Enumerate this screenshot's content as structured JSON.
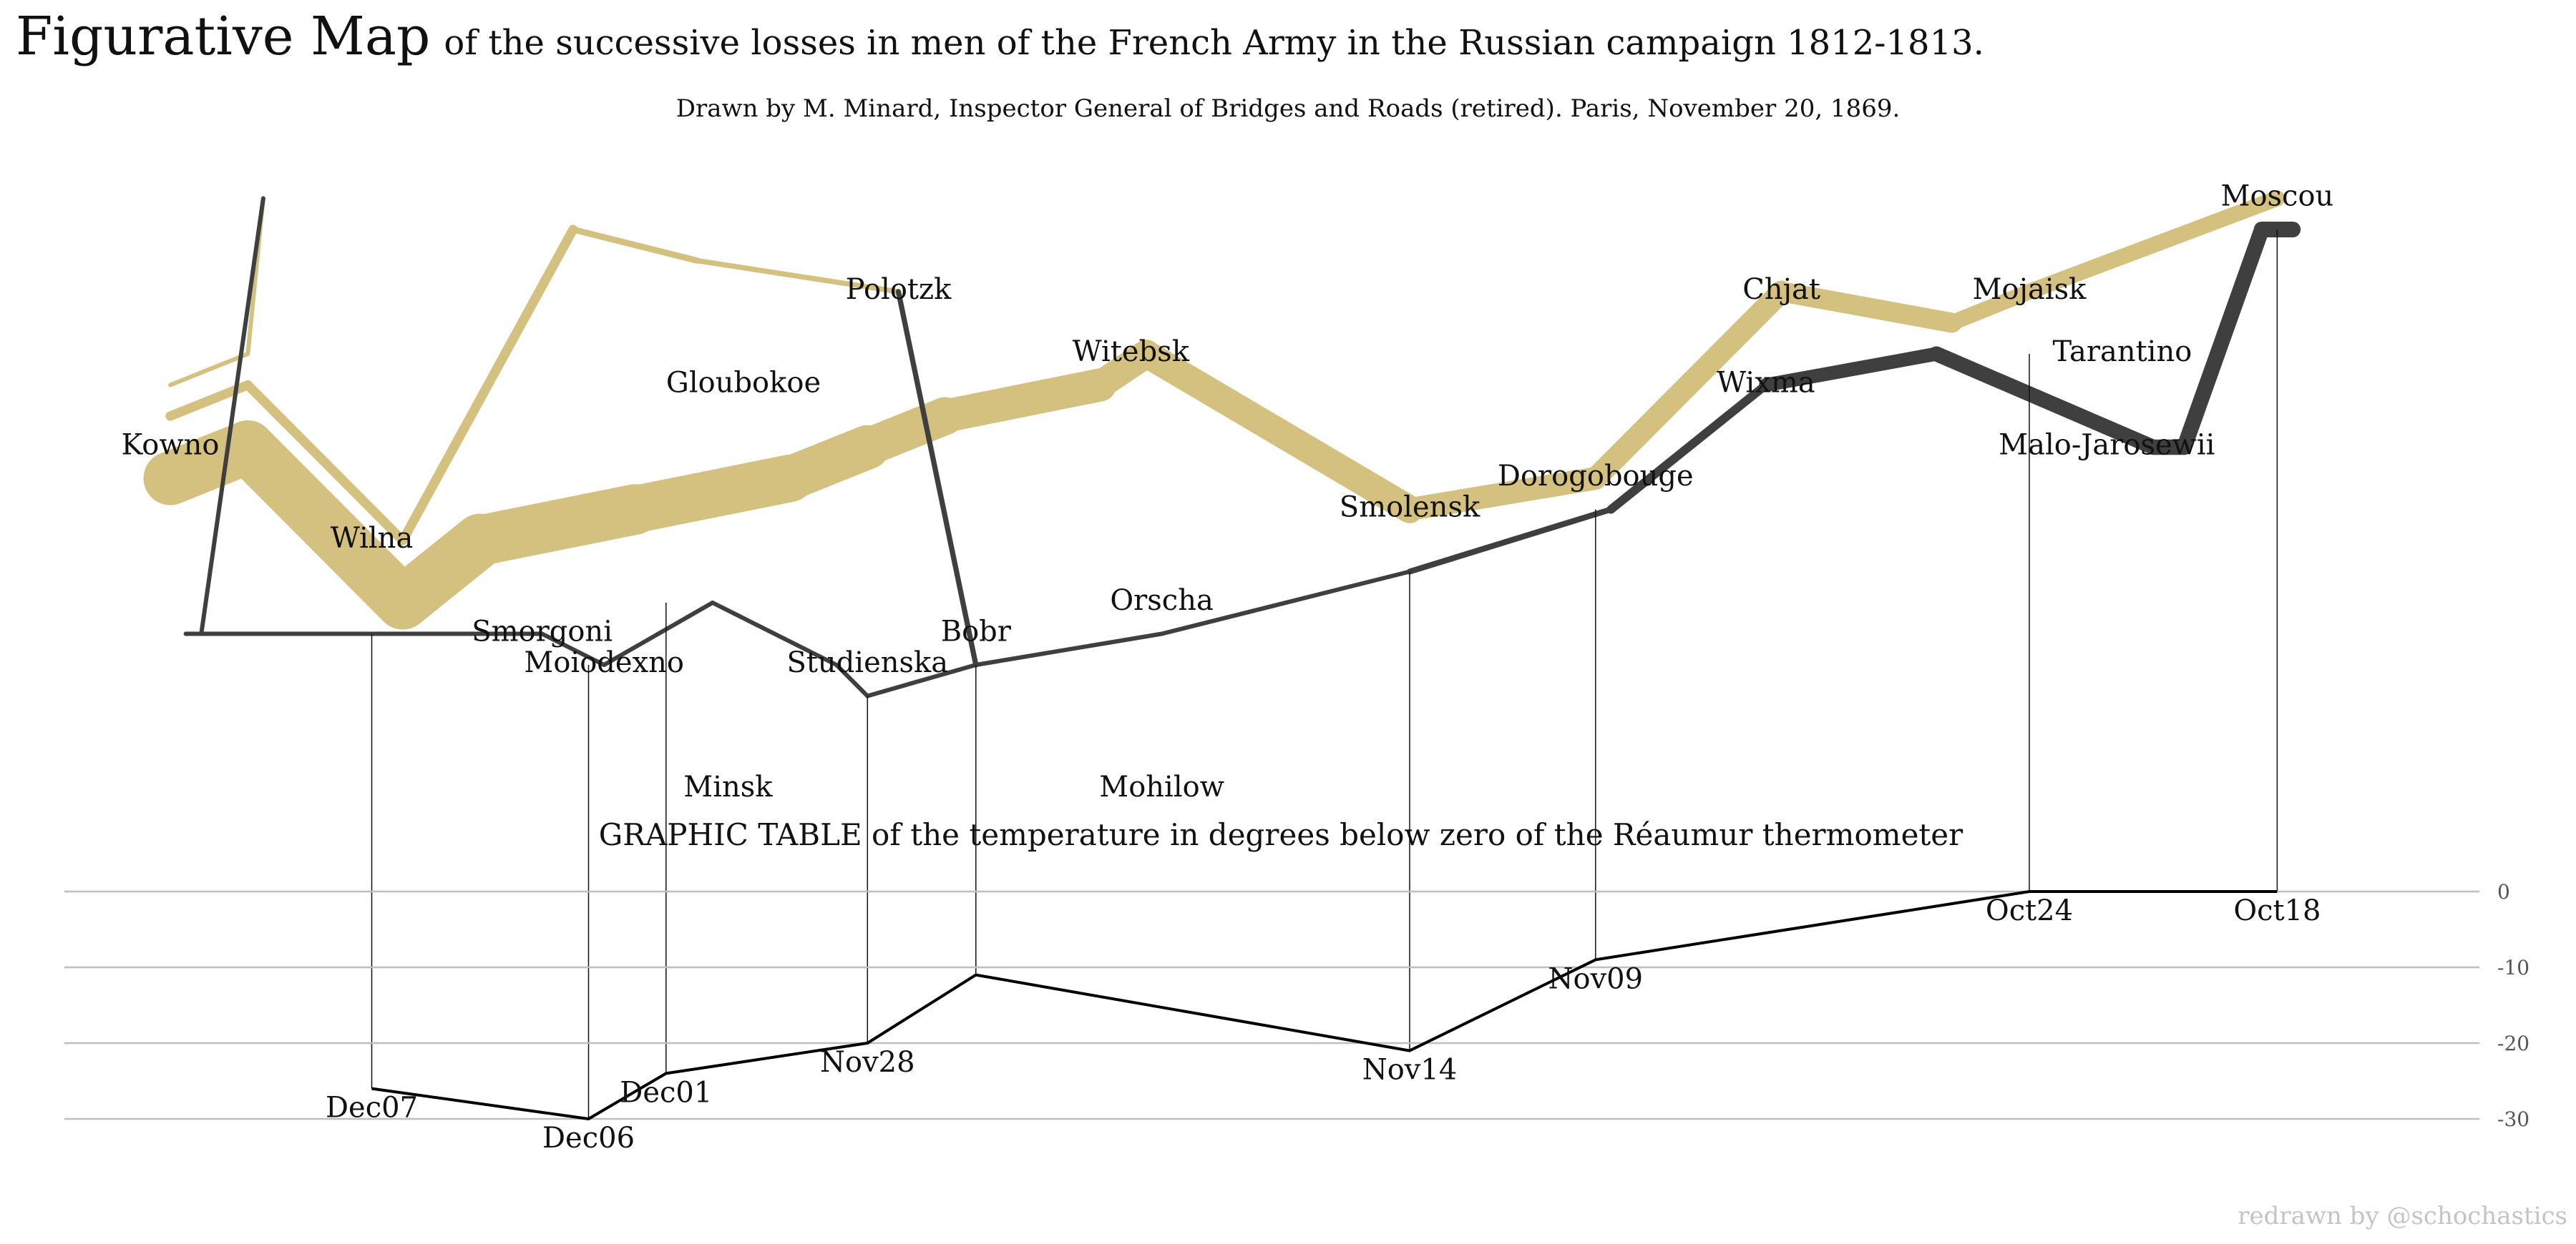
{
  "title": {
    "main": "Figurative Map",
    "rest": "of the successive losses in men of the French Army in the Russian campaign 1812-1813."
  },
  "subtitle": "Drawn by M. Minard, Inspector General of Bridges and Roads (retired). Paris, November 20, 1869.",
  "credit": "redrawn by @schochastics",
  "colors": {
    "advance": "#D4C17F",
    "retreat": "#3F3F3F",
    "grid": "#BEBEBE",
    "temperature": "#000000"
  },
  "chart_data": [
    {
      "type": "map",
      "description_source": "Minard 1869",
      "x_unit": "longitude",
      "y_unit": "latitude",
      "xlim": [
        23.5,
        38.5
      ],
      "ylim": [
        53.45,
        56.2
      ],
      "cities": [
        {
          "name": "Kowno",
          "lon": 24.0,
          "lat": 55.0
        },
        {
          "name": "Wilna",
          "lon": 25.3,
          "lat": 54.7
        },
        {
          "name": "Smorgoni",
          "lon": 26.4,
          "lat": 54.4
        },
        {
          "name": "Moiodexno",
          "lon": 26.8,
          "lat": 54.3
        },
        {
          "name": "Gloubokoe",
          "lon": 27.7,
          "lat": 55.2
        },
        {
          "name": "Minsk",
          "lon": 27.6,
          "lat": 53.9
        },
        {
          "name": "Studienska",
          "lon": 28.5,
          "lat": 54.3
        },
        {
          "name": "Polotzk",
          "lon": 28.7,
          "lat": 55.5
        },
        {
          "name": "Bobr",
          "lon": 29.2,
          "lat": 54.4
        },
        {
          "name": "Witebsk",
          "lon": 30.2,
          "lat": 55.3
        },
        {
          "name": "Orscha",
          "lon": 30.4,
          "lat": 54.5
        },
        {
          "name": "Mohilow",
          "lon": 30.4,
          "lat": 53.9
        },
        {
          "name": "Smolensk",
          "lon": 32.0,
          "lat": 54.8
        },
        {
          "name": "Dorogobouge",
          "lon": 33.2,
          "lat": 54.9
        },
        {
          "name": "Wixma",
          "lon": 34.3,
          "lat": 55.2
        },
        {
          "name": "Chjat",
          "lon": 34.4,
          "lat": 55.5
        },
        {
          "name": "Mojaisk",
          "lon": 36.0,
          "lat": 55.5
        },
        {
          "name": "Moscou",
          "lon": 37.6,
          "lat": 55.8
        },
        {
          "name": "Tarantino",
          "lon": 36.6,
          "lat": 55.3
        },
        {
          "name": "Malo-Jarosewii",
          "lon": 36.5,
          "lat": 55.0
        }
      ],
      "paths": [
        {
          "direction": "A",
          "group": 1,
          "points": [
            [
              24.0,
              54.9,
              340000
            ],
            [
              24.5,
              55.0,
              340000
            ],
            [
              25.5,
              54.5,
              340000
            ],
            [
              26.0,
              54.7,
              320000
            ],
            [
              27.0,
              54.8,
              300000
            ],
            [
              28.0,
              54.9,
              280000
            ],
            [
              28.5,
              55.0,
              240000
            ],
            [
              29.0,
              55.1,
              210000
            ],
            [
              30.0,
              55.2,
              180000
            ],
            [
              30.3,
              55.3,
              175000
            ],
            [
              32.0,
              54.8,
              145000
            ],
            [
              33.2,
              54.9,
              140000
            ],
            [
              34.4,
              55.5,
              127100
            ],
            [
              35.5,
              55.4,
              100000
            ],
            [
              36.0,
              55.5,
              100000
            ],
            [
              37.6,
              55.8,
              100000
            ]
          ]
        },
        {
          "direction": "R",
          "group": 1,
          "points": [
            [
              37.7,
              55.7,
              100000
            ],
            [
              37.5,
              55.7,
              98000
            ],
            [
              37.0,
              55.0,
              97000
            ],
            [
              36.8,
              55.0,
              96000
            ],
            [
              35.4,
              55.3,
              87000
            ],
            [
              34.3,
              55.2,
              55000
            ],
            [
              33.3,
              54.8,
              37000
            ],
            [
              32.0,
              54.6,
              24000
            ],
            [
              30.4,
              54.4,
              20000
            ],
            [
              29.2,
              54.3,
              20000
            ],
            [
              28.5,
              54.2,
              20000
            ],
            [
              28.3,
              54.3,
              20000
            ],
            [
              27.5,
              54.5,
              20000
            ],
            [
              26.8,
              54.3,
              12000
            ],
            [
              26.4,
              54.4,
              14000
            ],
            [
              25.0,
              54.4,
              8000
            ],
            [
              24.4,
              54.4,
              4000
            ],
            [
              24.2,
              54.4,
              4000
            ],
            [
              24.1,
              54.4,
              4000
            ]
          ]
        },
        {
          "direction": "A",
          "group": 2,
          "points": [
            [
              24.0,
              55.1,
              60000
            ],
            [
              24.5,
              55.2,
              60000
            ],
            [
              25.5,
              54.7,
              60000
            ],
            [
              26.6,
              55.7,
              40000
            ],
            [
              27.4,
              55.6,
              33000
            ],
            [
              28.7,
              55.5,
              33000
            ]
          ]
        },
        {
          "direction": "R",
          "group": 2,
          "points": [
            [
              28.7,
              55.5,
              33000
            ],
            [
              29.2,
              54.3,
              30000
            ]
          ]
        },
        {
          "direction": "A",
          "group": 3,
          "points": [
            [
              24.0,
              55.2,
              22000
            ],
            [
              24.5,
              55.3,
              22000
            ],
            [
              24.6,
              55.8,
              6000
            ]
          ]
        },
        {
          "direction": "R",
          "group": 3,
          "points": [
            [
              24.6,
              55.8,
              6000
            ],
            [
              24.2,
              54.4,
              6000
            ],
            [
              24.1,
              54.4,
              6000
            ]
          ]
        }
      ]
    },
    {
      "type": "line",
      "title": "GRAPHIC TABLE of the temperature in degrees below zero of the Réaumur thermometer",
      "x_unit": "longitude",
      "ylim": [
        -30,
        0
      ],
      "yticks": [
        0,
        -10,
        -20,
        -30
      ],
      "grid": true,
      "points": [
        {
          "lon": 37.6,
          "temp": 0,
          "date": "Oct18"
        },
        {
          "lon": 36.0,
          "temp": 0,
          "date": "Oct24"
        },
        {
          "lon": 33.2,
          "temp": -9,
          "date": "Nov09"
        },
        {
          "lon": 32.0,
          "temp": -21,
          "date": "Nov14"
        },
        {
          "lon": 29.2,
          "temp": -11,
          "date": ""
        },
        {
          "lon": 28.5,
          "temp": -20,
          "date": "Nov28"
        },
        {
          "lon": 27.2,
          "temp": -24,
          "date": "Dec01"
        },
        {
          "lon": 26.7,
          "temp": -30,
          "date": "Dec06"
        },
        {
          "lon": 25.3,
          "temp": -26,
          "date": "Dec07"
        }
      ]
    }
  ]
}
